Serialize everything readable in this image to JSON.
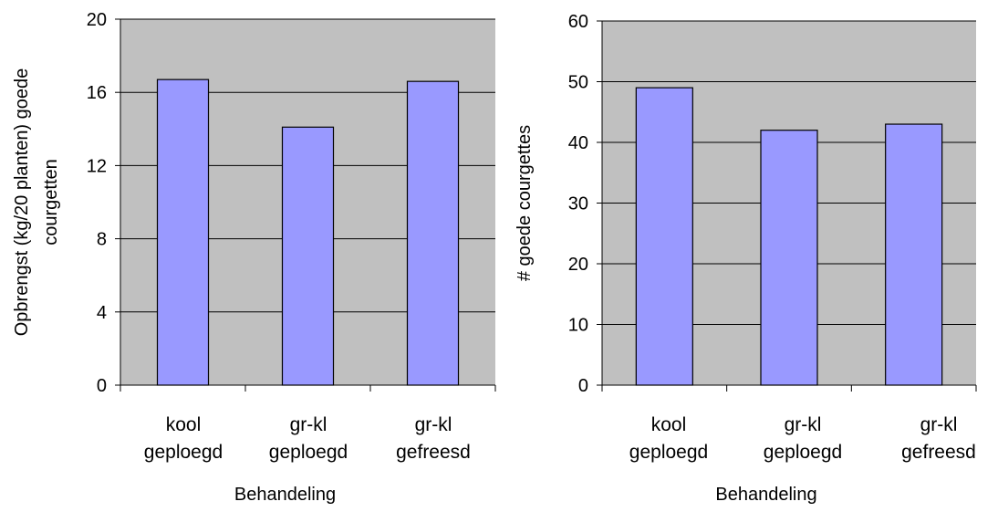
{
  "colors": {
    "plot_background": "#c0c0c0",
    "bar_fill": "#9999ff",
    "bar_stroke": "#000000",
    "gridline": "#000000"
  },
  "chart_data": [
    {
      "type": "bar",
      "title": "",
      "categories": [
        [
          "kool",
          "geploegd"
        ],
        [
          "gr-kl",
          "geploegd"
        ],
        [
          "gr-kl",
          "gefreesd"
        ]
      ],
      "values": [
        16.7,
        14.1,
        16.6
      ],
      "ylim": [
        0,
        20
      ],
      "yticks": [
        "0",
        "4",
        "8",
        "12",
        "16",
        "20"
      ],
      "xlabel": "Behandeling",
      "ylabel_lines": [
        "Opbrengst (kg/20 planten) goede",
        "courgetten"
      ],
      "grid": true,
      "legend": "none"
    },
    {
      "type": "bar",
      "title": "",
      "categories": [
        [
          "kool",
          "geploegd"
        ],
        [
          "gr-kl",
          "geploegd"
        ],
        [
          "gr-kl",
          "gefreesd"
        ]
      ],
      "values": [
        49,
        42,
        43
      ],
      "ylim": [
        0,
        60
      ],
      "yticks": [
        "0",
        "10",
        "20",
        "30",
        "40",
        "50",
        "60"
      ],
      "xlabel": "Behandeling",
      "ylabel_lines": [
        "# goede courgettes"
      ],
      "grid": true,
      "legend": "none"
    }
  ]
}
